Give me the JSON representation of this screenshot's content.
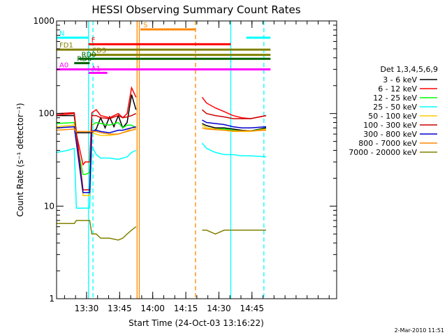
{
  "chart_data": {
    "type": "line",
    "title": "HESSI Observing Summary Count Rates",
    "xlabel": "Start Time (24-Oct-03 13:16:22)",
    "ylabel": "Count Rate (s⁻¹ detector⁻¹)",
    "yscale": "log",
    "ylim": [
      1,
      1000
    ],
    "xlim_min": [
      0,
      127
    ],
    "x_unit": "minutes after 13:16:22",
    "xticks": [
      {
        "label": "13:30",
        "x": 13.6
      },
      {
        "label": "13:45",
        "x": 28.6
      },
      {
        "label": "14:00",
        "x": 43.6
      },
      {
        "label": "14:15",
        "x": 58.6
      },
      {
        "label": "14:30",
        "x": 73.6
      },
      {
        "label": "14:45",
        "x": 88.6
      }
    ],
    "yticks": [
      {
        "label": "1",
        "y": 1
      },
      {
        "label": "10",
        "y": 10
      },
      {
        "label": "100",
        "y": 100
      },
      {
        "label": "1000",
        "y": 1000
      }
    ],
    "legend_title": "Det 1,3,4,5,6,9",
    "legend_position": "right",
    "series": [
      {
        "name": "3 - 6 keV",
        "color": "#000000",
        "x": [
          0,
          8,
          9,
          15,
          16,
          18,
          20,
          22,
          24,
          26,
          28,
          30,
          32,
          34,
          36,
          37,
          38,
          39,
          66,
          68,
          72,
          76,
          80,
          84,
          88,
          95
        ],
        "y": [
          95,
          95,
          62,
          62,
          62,
          68,
          90,
          70,
          92,
          72,
          95,
          70,
          80,
          160,
          110,
          null,
          null,
          null,
          78,
          74,
          70,
          70,
          68,
          66,
          65,
          70
        ]
      },
      {
        "name": "6 - 12 keV",
        "color": "#ff0000",
        "x": [
          0,
          8,
          9,
          12,
          13,
          15,
          16,
          18,
          20,
          24,
          28,
          30,
          32,
          34,
          36,
          37,
          66,
          68,
          72,
          76,
          80,
          84,
          88,
          95
        ],
        "y": [
          96,
          100,
          60,
          28,
          30,
          30,
          102,
          110,
          95,
          90,
          100,
          90,
          100,
          190,
          150,
          null,
          150,
          130,
          115,
          105,
          95,
          90,
          88,
          95
        ]
      },
      {
        "name": "12 - 25 keV",
        "color": "#00ff00",
        "x": [
          0,
          8,
          9,
          12,
          13,
          15,
          16,
          18,
          20,
          24,
          28,
          30,
          32,
          34,
          36,
          37,
          66,
          68,
          72,
          76,
          80,
          84,
          88,
          95
        ],
        "y": [
          78,
          80,
          50,
          22,
          22,
          23,
          75,
          80,
          78,
          75,
          80,
          70,
          75,
          75,
          70,
          null,
          75,
          70,
          68,
          68,
          66,
          65,
          65,
          68
        ]
      },
      {
        "name": "25 - 50 keV",
        "color": "#00ffff",
        "x": [
          0,
          5,
          8,
          9,
          12,
          13,
          15,
          16,
          18,
          20,
          24,
          28,
          30,
          32,
          34,
          36,
          37,
          66,
          68,
          72,
          76,
          80,
          84,
          88,
          95
        ],
        "y": [
          38,
          40,
          42,
          9.5,
          9.5,
          9.5,
          9.5,
          44,
          36,
          33,
          33,
          32,
          33,
          34,
          38,
          40,
          null,
          48,
          42,
          38,
          36,
          36,
          35,
          35,
          34
        ]
      },
      {
        "name": "50 - 100 keV",
        "color": "#ffcc00",
        "x": [
          0,
          8,
          9,
          12,
          13,
          15,
          16,
          18,
          20,
          24,
          28,
          30,
          32,
          34,
          36,
          37,
          66,
          68,
          72,
          76,
          80,
          84,
          88,
          95
        ],
        "y": [
          72,
          75,
          50,
          13,
          13,
          13,
          62,
          60,
          58,
          58,
          60,
          62,
          65,
          70,
          70,
          null,
          75,
          70,
          68,
          66,
          64,
          64,
          64,
          68
        ]
      },
      {
        "name": "100 - 300 keV",
        "color": "#cc0000",
        "x": [
          0,
          8,
          9,
          12,
          13,
          15,
          16,
          18,
          20,
          24,
          28,
          30,
          32,
          34,
          36,
          37,
          66,
          68,
          72,
          76,
          80,
          84,
          88,
          95
        ],
        "y": [
          100,
          102,
          62,
          15,
          15,
          15,
          95,
          95,
          90,
          88,
          95,
          90,
          92,
          95,
          100,
          null,
          110,
          100,
          95,
          92,
          88,
          88,
          88,
          95
        ]
      },
      {
        "name": "300 - 800 keV",
        "color": "#0000cc",
        "x": [
          0,
          8,
          9,
          12,
          13,
          15,
          16,
          18,
          20,
          24,
          28,
          30,
          32,
          34,
          36,
          37,
          66,
          68,
          72,
          76,
          80,
          84,
          88,
          95
        ],
        "y": [
          70,
          72,
          48,
          14,
          14,
          14,
          65,
          66,
          64,
          62,
          66,
          66,
          68,
          70,
          72,
          null,
          85,
          80,
          78,
          76,
          72,
          70,
          70,
          72
        ]
      },
      {
        "name": "800 - 7000 keV",
        "color": "#ff8800",
        "x": [
          0,
          8,
          9,
          12,
          13,
          15,
          16,
          18,
          20,
          24,
          28,
          30,
          32,
          34,
          36,
          37,
          66,
          68,
          72,
          76,
          80,
          84,
          88,
          95
        ],
        "y": [
          66,
          68,
          64,
          64,
          64,
          64,
          64,
          64,
          62,
          60,
          60,
          62,
          64,
          66,
          68,
          null,
          70,
          68,
          67,
          66,
          65,
          65,
          65,
          66
        ]
      },
      {
        "name": "7000 - 20000 keV",
        "color": "#808000",
        "x": [
          0,
          8,
          9,
          12,
          13,
          15,
          16,
          18,
          20,
          24,
          28,
          30,
          32,
          34,
          36,
          37,
          66,
          68,
          72,
          76,
          80,
          84,
          88,
          95
        ],
        "y": [
          6.5,
          6.5,
          7,
          7,
          7,
          7,
          5,
          5,
          4.5,
          4.5,
          4.3,
          4.5,
          5,
          5.5,
          6,
          null,
          5.5,
          5.5,
          5,
          5.5,
          5.5,
          5.5,
          5.5,
          5.5
        ]
      }
    ],
    "annotations": [
      {
        "label": "N",
        "color": "#00ffff",
        "level": 660,
        "x_start": 0,
        "x_end": 14.5,
        "x_start2": 86,
        "x_end2": 97
      },
      {
        "label": "S",
        "color": "#ff8800",
        "level": 810,
        "x_start": 38,
        "x_end": 63
      },
      {
        "label": "F",
        "color": "#ff0000",
        "level": 560,
        "x_start": 14.5,
        "x_end": 79
      },
      {
        "label": "FD1",
        "color": "#808000",
        "level": 490,
        "x_start": 0,
        "x_end": 97
      },
      {
        "label": "FD3",
        "color": "#808000",
        "level": 430,
        "x_start": 15,
        "x_end": 97
      },
      {
        "label": "RD0",
        "color": "#006600",
        "level": 390,
        "x_start": 10,
        "x_end": 97
      },
      {
        "label": "RD6",
        "color": "#006600",
        "level": 350,
        "x_start": 8,
        "x_end": 15
      },
      {
        "label": "A0",
        "color": "#ff00ff",
        "level": 300,
        "x_start": 0,
        "x_end": 97
      },
      {
        "label": "A1",
        "color": "#ff00ff",
        "level": 275,
        "x_start": 14.5,
        "x_end": 23
      }
    ],
    "vertical_markers": [
      {
        "x": 14.5,
        "color": "#00ffff",
        "style": "solid"
      },
      {
        "x": 16.5,
        "color": "#00ffff",
        "style": "dashed"
      },
      {
        "x": 36.5,
        "color": "#ff8800",
        "style": "solid"
      },
      {
        "x": 37.5,
        "color": "#ff8800",
        "style": "solid"
      },
      {
        "x": 63,
        "color": "#ff8800",
        "style": "dashed"
      },
      {
        "x": 79,
        "color": "#00ffff",
        "style": "solid"
      },
      {
        "x": 94,
        "color": "#00ffff",
        "style": "dashed"
      }
    ],
    "grid": false
  },
  "footer": {
    "date_stamp": "2-Mar-2010 11:51"
  }
}
